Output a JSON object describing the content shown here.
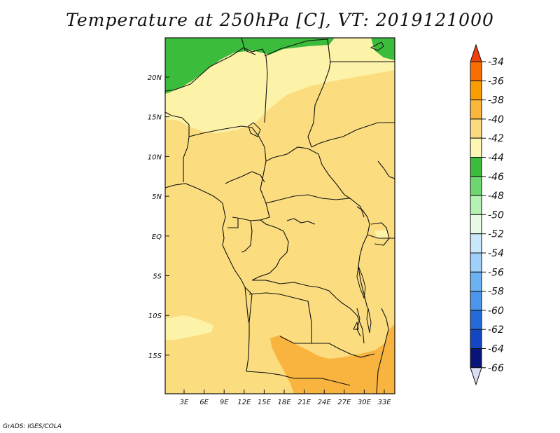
{
  "title": "Temperature at 250hPa [C], VT: 2019121000",
  "credit": "GrADS: IGES/COLA",
  "map": {
    "lat_labels": [
      "20N",
      "15N",
      "10N",
      "5N",
      "EQ",
      "5S",
      "10S",
      "15S"
    ],
    "lon_labels": [
      "3E",
      "6E",
      "9E",
      "12E",
      "15E",
      "18E",
      "21E",
      "24E",
      "27E",
      "30E",
      "33E"
    ]
  },
  "colorbar": {
    "labels": [
      "-34",
      "-36",
      "-38",
      "-40",
      "-42",
      "-44",
      "-46",
      "-48",
      "-50",
      "-52",
      "-54",
      "-56",
      "-58",
      "-60",
      "-62",
      "-64",
      "-66"
    ],
    "colors": [
      "#f0410b",
      "#fa6e00",
      "#fa9e00",
      "#fbb63c",
      "#f9da7c",
      "#fdf7b3",
      "#3cbc3c",
      "#6ed66e",
      "#b3f2b3",
      "#e6fae6",
      "#c9e8fb",
      "#9fd0fb",
      "#6cb2f3",
      "#4b95ea",
      "#246ad9",
      "#1446c2",
      "#091478",
      "#dcdcf5"
    ]
  }
}
